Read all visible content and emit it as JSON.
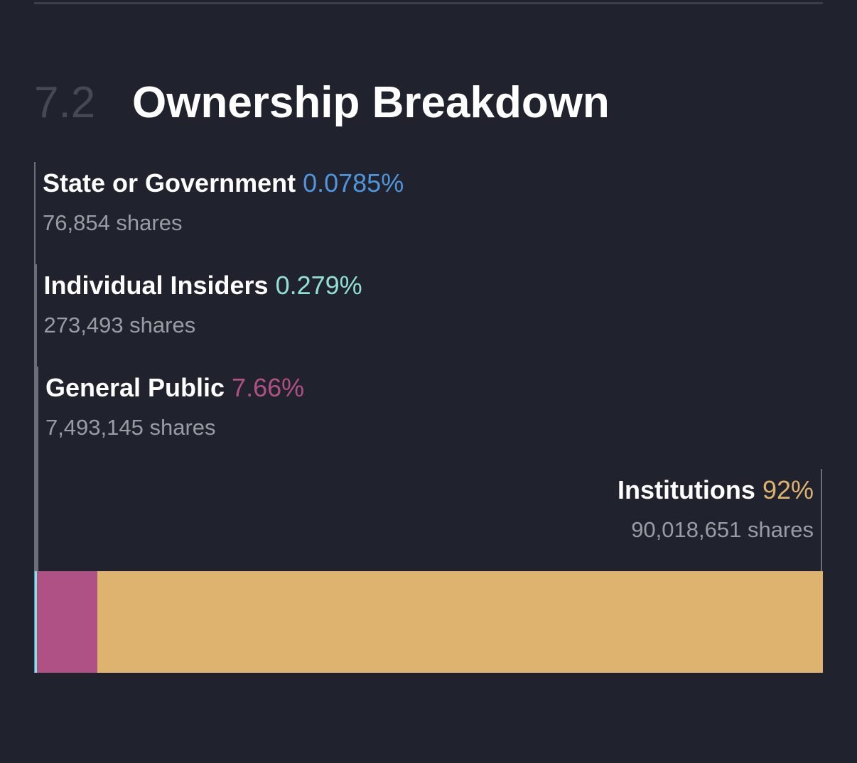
{
  "section": {
    "number": "7.2",
    "title": "Ownership Breakdown"
  },
  "chart_data": {
    "type": "bar",
    "layout": "stacked-horizontal-100",
    "title": "",
    "categories": [
      "State or Government",
      "Individual Insiders",
      "General Public",
      "Institutions"
    ],
    "series": [
      {
        "name": "State or Government",
        "percent_label": "0.0785%",
        "shares_label": "76,854 shares",
        "value": 0.0785,
        "shares": 76854,
        "color": "#4f95db"
      },
      {
        "name": "Individual Insiders",
        "percent_label": "0.279%",
        "shares_label": "273,493 shares",
        "value": 0.279,
        "shares": 273493,
        "color": "#8fe0d6"
      },
      {
        "name": "General Public",
        "percent_label": "7.66%",
        "shares_label": "7,493,145 shares",
        "value": 7.66,
        "shares": 7493145,
        "color": "#b05186"
      },
      {
        "name": "Institutions",
        "percent_label": "92%",
        "shares_label": "90,018,651 shares",
        "value": 92,
        "shares": 90018651,
        "color": "#ddb36f"
      }
    ]
  }
}
